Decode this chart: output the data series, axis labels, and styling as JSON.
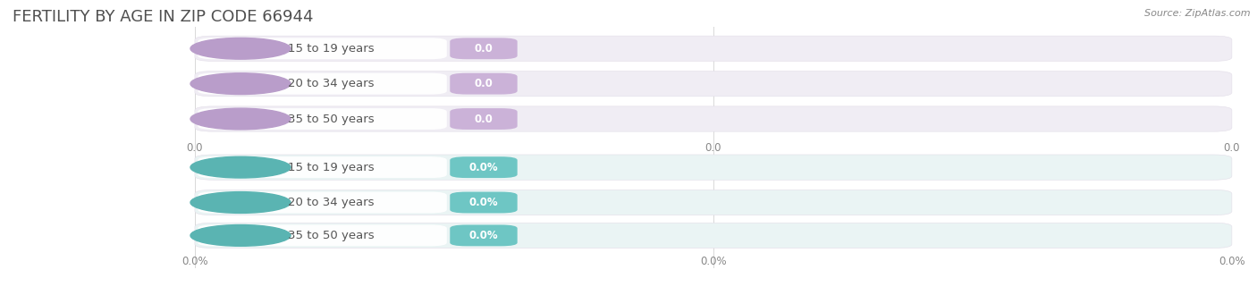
{
  "title": "FERTILITY BY AGE IN ZIP CODE 66944",
  "source": "Source: ZipAtlas.com",
  "background_color": "#ffffff",
  "top_section": {
    "rows": [
      {
        "label": "15 to 19 years",
        "value": 0.0,
        "display": "0.0"
      },
      {
        "label": "20 to 34 years",
        "value": 0.0,
        "display": "0.0"
      },
      {
        "label": "35 to 50 years",
        "value": 0.0,
        "display": "0.0"
      }
    ],
    "bar_bg_color": "#f0edf4",
    "pill_color": "#cbb2d8",
    "icon_color": "#b99dca",
    "label_text_color": "#555555",
    "value_text_color": "#ffffff",
    "tick_labels": [
      "",
      "0.0",
      "0.0"
    ]
  },
  "bottom_section": {
    "rows": [
      {
        "label": "15 to 19 years",
        "value": 0.0,
        "display": "0.0%"
      },
      {
        "label": "20 to 34 years",
        "value": 0.0,
        "display": "0.0%"
      },
      {
        "label": "35 to 50 years",
        "value": 0.0,
        "display": "0.0%"
      }
    ],
    "bar_bg_color": "#eaf4f4",
    "pill_color": "#6ec6c4",
    "icon_color": "#5ab4b2",
    "label_text_color": "#555555",
    "value_text_color": "#ffffff",
    "tick_labels": [
      "",
      "0.0%",
      "0.0%"
    ]
  },
  "figsize": [
    14.06,
    3.3
  ],
  "dpi": 100,
  "title_fontsize": 13,
  "label_fontsize": 9.5,
  "value_fontsize": 8.5,
  "tick_fontsize": 8.5,
  "source_fontsize": 8
}
